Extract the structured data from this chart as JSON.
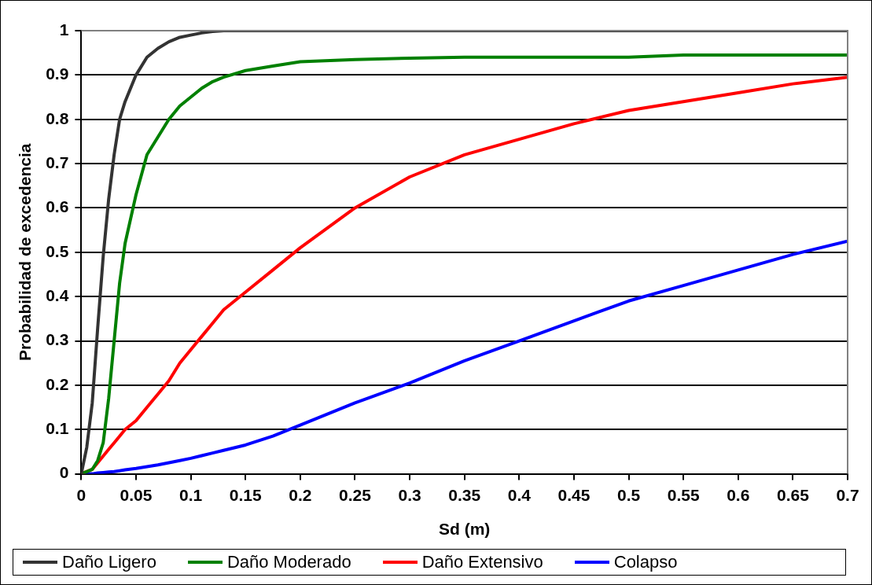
{
  "chart_data": {
    "type": "line",
    "xlabel": "Sd (m)",
    "ylabel": "Probabilidad de excedencia",
    "x": [
      0,
      0.005,
      0.01,
      0.015,
      0.02,
      0.025,
      0.03,
      0.035,
      0.04,
      0.05,
      0.06,
      0.07,
      0.08,
      0.09,
      0.1,
      0.11,
      0.12,
      0.13,
      0.15,
      0.175,
      0.2,
      0.25,
      0.3,
      0.35,
      0.4,
      0.45,
      0.5,
      0.55,
      0.6,
      0.65,
      0.7
    ],
    "series": [
      {
        "name": "Daño Ligero",
        "color": "#333333",
        "values": [
          0,
          0.06,
          0.16,
          0.33,
          0.49,
          0.62,
          0.72,
          0.8,
          0.84,
          0.9,
          0.94,
          0.96,
          0.975,
          0.985,
          0.99,
          0.995,
          0.998,
          1,
          1,
          1,
          1,
          1,
          1,
          1,
          1,
          1,
          1,
          1,
          1,
          1,
          1
        ]
      },
      {
        "name": "Daño Moderado",
        "color": "#008000",
        "values": [
          0,
          0.005,
          0.01,
          0.03,
          0.07,
          0.17,
          0.3,
          0.43,
          0.52,
          0.63,
          0.72,
          0.76,
          0.8,
          0.83,
          0.85,
          0.87,
          0.885,
          0.895,
          0.91,
          0.92,
          0.93,
          0.935,
          0.938,
          0.94,
          0.94,
          0.94,
          0.94,
          0.945,
          0.945,
          0.945,
          0.945
        ]
      },
      {
        "name": "Daño Extensivo",
        "color": "#ff0000",
        "values": [
          0,
          null,
          0.01,
          0.025,
          0.04,
          0.055,
          0.07,
          0.085,
          0.1,
          0.12,
          0.15,
          0.18,
          0.21,
          0.25,
          0.28,
          0.31,
          0.34,
          0.37,
          0.41,
          0.46,
          0.51,
          0.6,
          0.67,
          0.72,
          0.755,
          0.79,
          0.82,
          0.84,
          0.86,
          0.88,
          0.895
        ]
      },
      {
        "name": "Colapso",
        "color": "#0000ff",
        "values": [
          0,
          0,
          0,
          0.002,
          0.003,
          0.004,
          0.005,
          0.007,
          0.009,
          0.012,
          0.016,
          0.02,
          0.025,
          0.03,
          0.035,
          0.041,
          0.047,
          0.053,
          0.065,
          0.085,
          0.11,
          0.16,
          0.205,
          0.255,
          0.3,
          0.345,
          0.39,
          0.425,
          0.46,
          0.495,
          0.525
        ]
      }
    ],
    "xlim": [
      0,
      0.7
    ],
    "xticks": [
      0,
      0.05,
      0.1,
      0.15,
      0.2,
      0.25,
      0.3,
      0.35,
      0.4,
      0.45,
      0.5,
      0.55,
      0.6,
      0.65,
      0.7
    ],
    "ylim": [
      0,
      1
    ],
    "yticks": [
      0,
      0.1,
      0.2,
      0.3,
      0.4,
      0.5,
      0.6,
      0.7,
      0.8,
      0.9,
      1
    ],
    "grid": "y",
    "legend": "bottom",
    "marker": "none",
    "line_style": "solid"
  }
}
